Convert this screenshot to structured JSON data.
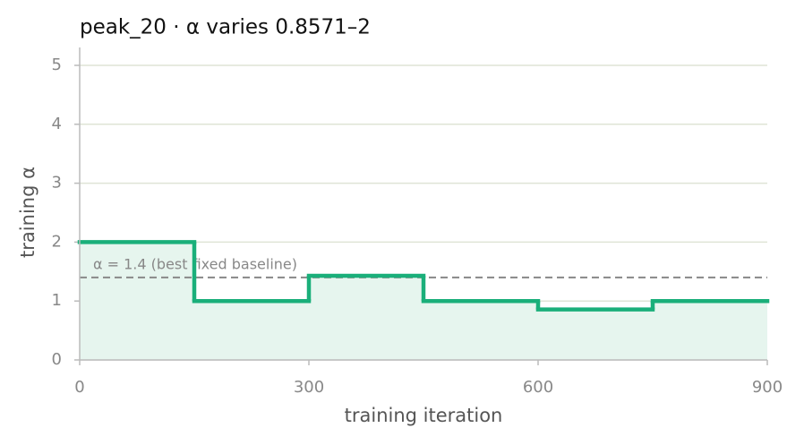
{
  "chart_data": {
    "type": "step",
    "title": "peak_20   ·   α varies 0.8571–2",
    "x_label": "training iteration",
    "y_label": "training α",
    "x": [
      0,
      150,
      300,
      450,
      600,
      750
    ],
    "values": [
      2,
      1,
      1.4286,
      1,
      0.8571,
      1
    ],
    "color": "#1aaf7a",
    "fill_color": "#e6f5ee",
    "baseline": {
      "value": 1.4,
      "label": "α = 1.4 (best fixed baseline)",
      "color": "#888888"
    },
    "xlim": [
      0,
      900
    ],
    "xticks": [
      0,
      300,
      600,
      900
    ],
    "ylim": [
      0,
      5
    ],
    "yticks": [
      0,
      1,
      2,
      3,
      4,
      5
    ],
    "grid": true
  }
}
